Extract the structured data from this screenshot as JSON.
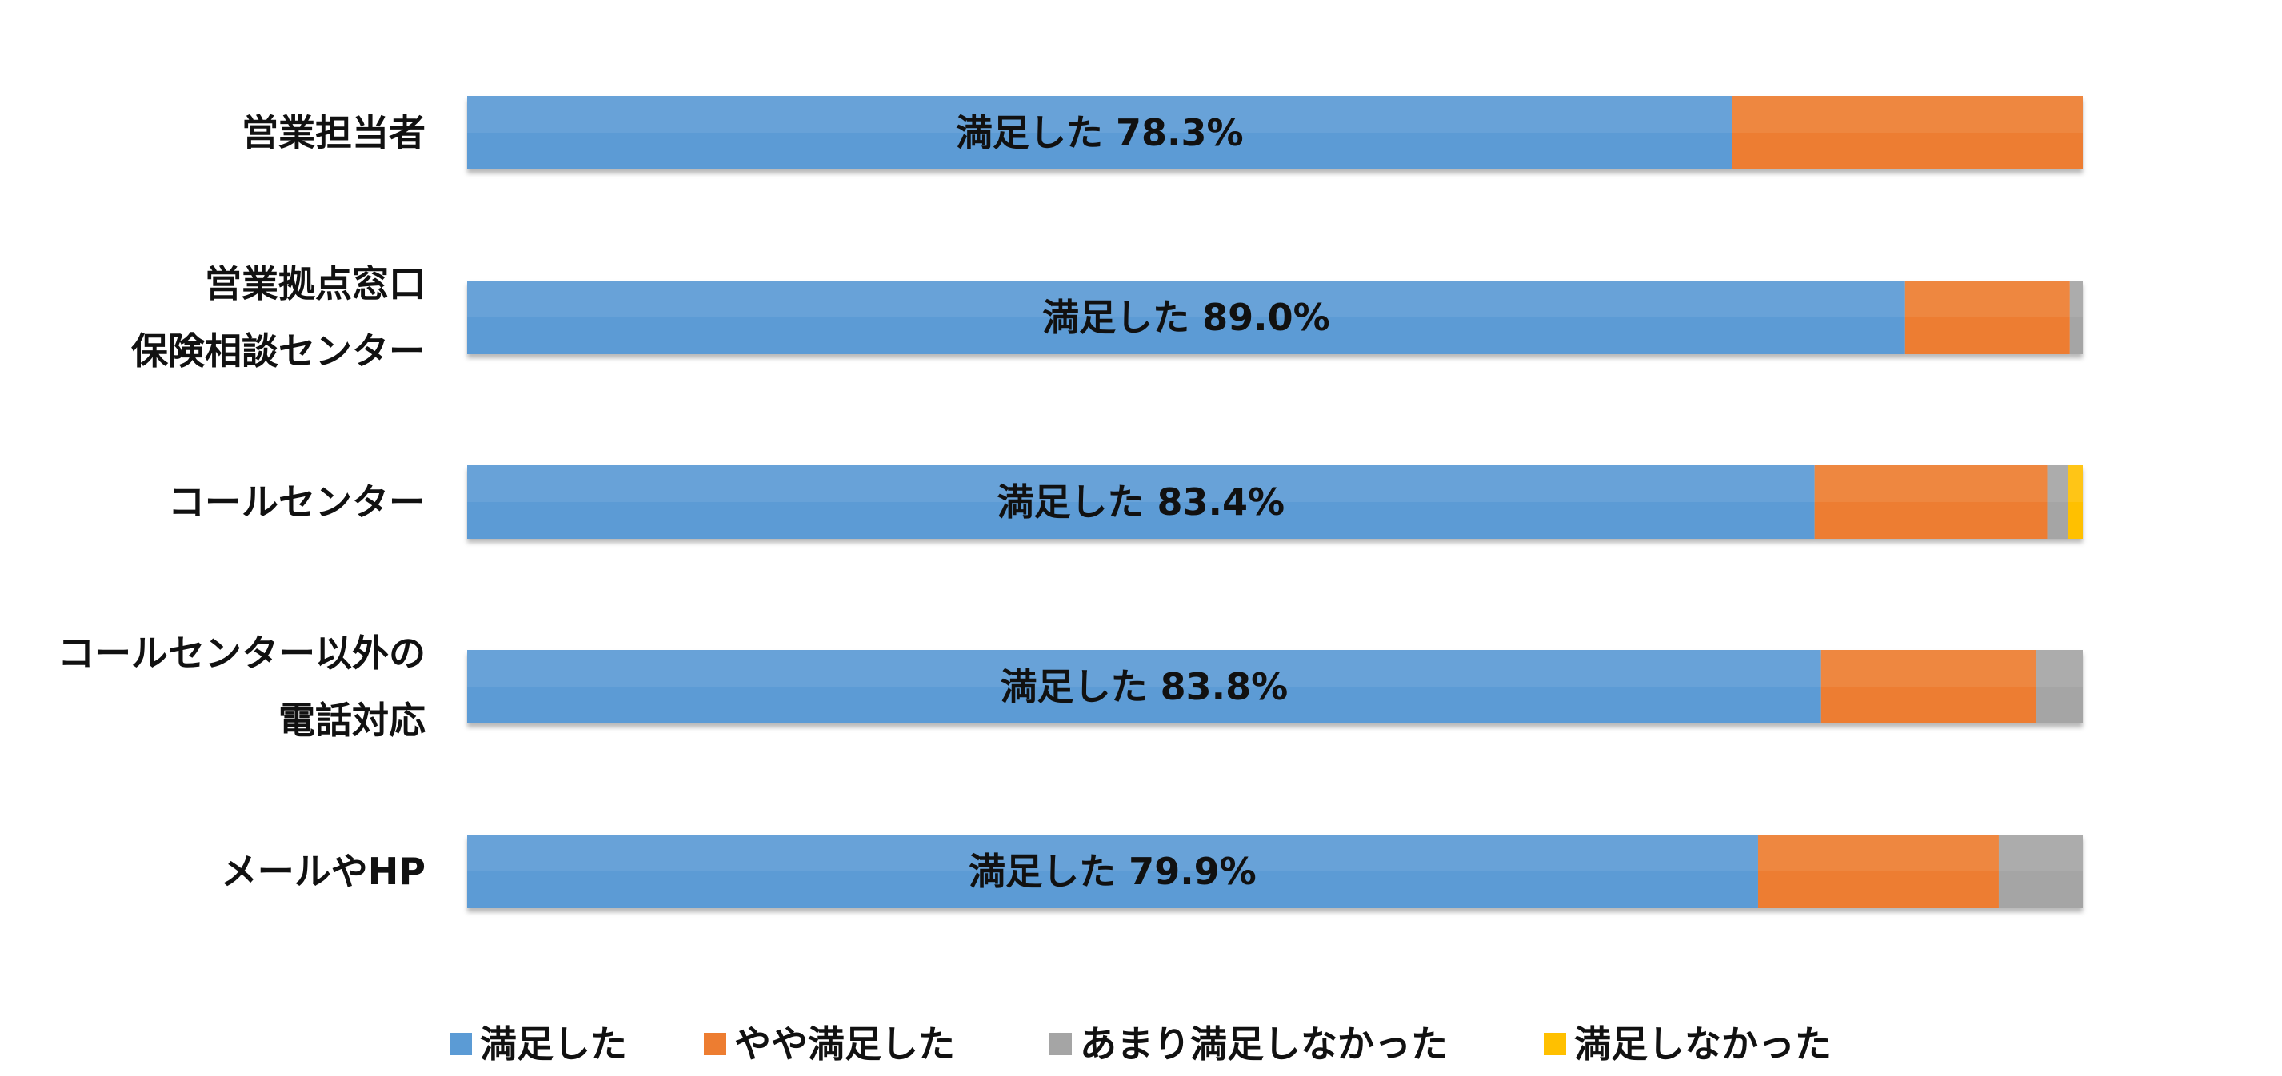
{
  "chart_data": {
    "type": "bar",
    "orientation": "horizontal",
    "stacked": true,
    "percent_stacked": true,
    "categories": [
      "営業担当者",
      "営業拠点窓口\n保険相談センター",
      "コールセンター",
      "コールセンター以外の\n電話対応",
      "メールやHP"
    ],
    "series": [
      {
        "name": "満足した",
        "color": "#5B9BD5",
        "values": [
          78.3,
          89.0,
          83.4,
          83.8,
          79.9
        ]
      },
      {
        "name": "やや満足した",
        "color": "#ED7D31",
        "values": [
          21.7,
          10.2,
          14.4,
          13.3,
          14.9
        ]
      },
      {
        "name": "あまり満足しなかった",
        "color": "#A5A5A5",
        "values": [
          0.0,
          0.8,
          1.3,
          2.9,
          5.2
        ]
      },
      {
        "name": "満足しなかった",
        "color": "#FFC000",
        "values": [
          0.0,
          0.0,
          0.9,
          0.0,
          0.0
        ]
      }
    ],
    "data_labels": [
      "満足した 78.3%",
      "満足した 89.0%",
      "満足した 83.4%",
      "満足した 83.8%",
      "満足した 79.9%"
    ],
    "xlim": [
      0,
      100
    ],
    "grid": false,
    "legend_position": "bottom"
  }
}
